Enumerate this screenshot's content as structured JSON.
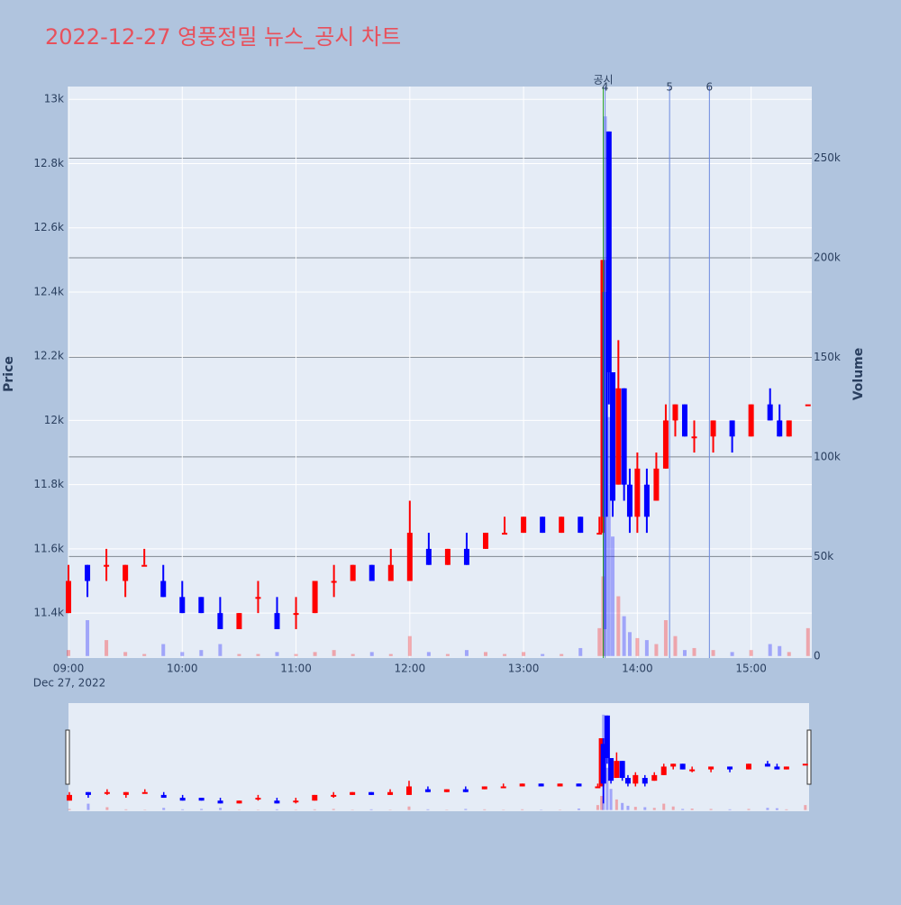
{
  "chart_data": {
    "type": "candlestick",
    "title": "2022-12-27 영풍정밀 뉴스_공시 차트",
    "y_label": "Price",
    "y2_label": "Volume",
    "increasing_color": "#ff0000",
    "decreasing_color": "#0000ff",
    "x": [
      "2022-12-27 09:00",
      "2022-12-27 09:10",
      "2022-12-27 09:20",
      "2022-12-27 09:30",
      "2022-12-27 09:40",
      "2022-12-27 09:50",
      "2022-12-27 10:00",
      "2022-12-27 10:10",
      "2022-12-27 10:20",
      "2022-12-27 10:30",
      "2022-12-27 10:40",
      "2022-12-27 10:50",
      "2022-12-27 11:00",
      "2022-12-27 11:10",
      "2022-12-27 11:20",
      "2022-12-27 11:30",
      "2022-12-27 11:40",
      "2022-12-27 11:50",
      "2022-12-27 12:00",
      "2022-12-27 12:10",
      "2022-12-27 12:20",
      "2022-12-27 12:30",
      "2022-12-27 12:40",
      "2022-12-27 12:50",
      "2022-12-27 13:00",
      "2022-12-27 13:10",
      "2022-12-27 13:20",
      "2022-12-27 13:30",
      "2022-12-27 13:40",
      "2022-12-27 13:42",
      "2022-12-27 13:43",
      "2022-12-27 13:45",
      "2022-12-27 13:47",
      "2022-12-27 13:50",
      "2022-12-27 13:53",
      "2022-12-27 13:56",
      "2022-12-27 14:00",
      "2022-12-27 14:05",
      "2022-12-27 14:10",
      "2022-12-27 14:15",
      "2022-12-27 14:20",
      "2022-12-27 14:25",
      "2022-12-27 14:30",
      "2022-12-27 14:40",
      "2022-12-27 14:50",
      "2022-12-27 15:00",
      "2022-12-27 15:10",
      "2022-12-27 15:15",
      "2022-12-27 15:20",
      "2022-12-27 15:30"
    ],
    "open": [
      11400,
      11550,
      11550,
      11500,
      11550,
      11500,
      11450,
      11450,
      11400,
      11350,
      11450,
      11400,
      11400,
      11400,
      11500,
      11500,
      11550,
      11500,
      11500,
      11600,
      11550,
      11600,
      11600,
      11650,
      11650,
      11700,
      11650,
      11700,
      11650,
      11650,
      12400,
      12900,
      12150,
      11800,
      12100,
      11800,
      11700,
      11800,
      11750,
      11850,
      12000,
      12050,
      11950,
      11950,
      12000,
      11950,
      12050,
      12000,
      11950,
      12050
    ],
    "high": [
      11550,
      11550,
      11600,
      11550,
      11600,
      11550,
      11500,
      11450,
      11450,
      11400,
      11500,
      11450,
      11450,
      11500,
      11550,
      11550,
      11550,
      11600,
      11750,
      11650,
      11600,
      11650,
      11650,
      11700,
      11700,
      11700,
      11700,
      11700,
      11700,
      12500,
      12500,
      12900,
      12150,
      12250,
      12100,
      11850,
      11900,
      11850,
      11900,
      12050,
      12050,
      12050,
      12000,
      12000,
      12000,
      12050,
      12100,
      12050,
      12000,
      12050
    ],
    "low": [
      11400,
      11450,
      11500,
      11450,
      11550,
      11450,
      11400,
      11400,
      11350,
      11350,
      11400,
      11350,
      11350,
      11400,
      11450,
      11500,
      11500,
      11500,
      11500,
      11550,
      11550,
      11550,
      11600,
      11650,
      11650,
      11650,
      11650,
      11650,
      11650,
      11650,
      11350,
      12050,
      11700,
      11800,
      11750,
      11650,
      11650,
      11650,
      11750,
      11850,
      11950,
      11950,
      11900,
      11900,
      11900,
      11950,
      12000,
      11950,
      11950,
      12050
    ],
    "close": [
      11500,
      11500,
      11550,
      11550,
      11550,
      11450,
      11400,
      11400,
      11350,
      11400,
      11450,
      11350,
      11400,
      11500,
      11500,
      11550,
      11500,
      11550,
      11650,
      11550,
      11600,
      11550,
      11650,
      11650,
      11700,
      11650,
      11700,
      11650,
      11650,
      12500,
      11700,
      12150,
      11750,
      12100,
      11800,
      11700,
      11850,
      11700,
      11850,
      12000,
      12050,
      11950,
      11950,
      12000,
      11950,
      12050,
      12000,
      11950,
      12000,
      12050
    ],
    "volume": [
      3000,
      18000,
      8000,
      2000,
      1000,
      6000,
      2000,
      3000,
      6000,
      1000,
      1000,
      2000,
      1000,
      2000,
      3000,
      1000,
      2000,
      1000,
      10000,
      2000,
      1000,
      3000,
      2000,
      1000,
      2000,
      1000,
      1000,
      4000,
      14000,
      40000,
      271000,
      120000,
      60000,
      30000,
      20000,
      12000,
      9000,
      8000,
      6000,
      18000,
      10000,
      3000,
      4000,
      3000,
      2000,
      3000,
      6000,
      5000,
      2000,
      14000
    ],
    "xlim": [
      "2022-12-27 09:00",
      "2022-12-27 15:32"
    ],
    "xticks": [
      {
        "value": "2022-12-27 09:00",
        "label": "09:00"
      },
      {
        "value": "2022-12-27 10:00",
        "label": "10:00"
      },
      {
        "value": "2022-12-27 11:00",
        "label": "11:00"
      },
      {
        "value": "2022-12-27 12:00",
        "label": "12:00"
      },
      {
        "value": "2022-12-27 13:00",
        "label": "13:00"
      },
      {
        "value": "2022-12-27 14:00",
        "label": "14:00"
      },
      {
        "value": "2022-12-27 15:00",
        "label": "15:00"
      }
    ],
    "x_date_label": "Dec 27, 2022",
    "ylim": [
      11260,
      13040
    ],
    "yticks": [
      {
        "value": 11400,
        "label": "11.4k"
      },
      {
        "value": 11600,
        "label": "11.6k"
      },
      {
        "value": 11800,
        "label": "11.8k"
      },
      {
        "value": 12000,
        "label": "12k"
      },
      {
        "value": 12200,
        "label": "12.2k"
      },
      {
        "value": 12400,
        "label": "12.4k"
      },
      {
        "value": 12600,
        "label": "12.6k"
      },
      {
        "value": 12800,
        "label": "12.8k"
      },
      {
        "value": 13000,
        "label": "13k"
      }
    ],
    "y2lim": [
      -1000,
      286000
    ],
    "y2ticks": [
      0,
      {
        "value": 50000,
        "label": "50k"
      },
      {
        "value": 100000,
        "label": "100k"
      },
      {
        "value": 150000,
        "label": "150k"
      },
      {
        "value": 200000,
        "label": "200k"
      },
      {
        "value": 250000,
        "label": "250k"
      }
    ],
    "annotations": [
      {
        "x": "2022-12-27 13:42",
        "label": "공시",
        "color": "#2ca02c"
      },
      {
        "x": "2022-12-27 13:43",
        "label": "4",
        "color": "#6c8ae0"
      },
      {
        "x": "2022-12-27 14:17",
        "label": "5",
        "color": "#6c8ae0"
      },
      {
        "x": "2022-12-27 14:38",
        "label": "6",
        "color": "#6c8ae0"
      }
    ],
    "grid": true
  }
}
